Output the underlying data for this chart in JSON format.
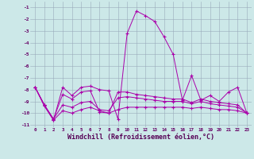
{
  "x": [
    0,
    1,
    2,
    3,
    4,
    5,
    6,
    7,
    8,
    9,
    10,
    11,
    12,
    13,
    14,
    15,
    16,
    17,
    18,
    19,
    20,
    21,
    22,
    23
  ],
  "line1": [
    -7.8,
    -9.3,
    -10.6,
    -7.8,
    -8.5,
    -7.8,
    -7.7,
    -8.0,
    -8.1,
    -10.5,
    -3.2,
    -1.3,
    -1.7,
    -2.2,
    -3.5,
    -5.0,
    -8.9,
    -6.8,
    -8.9,
    -8.5,
    -9.0,
    -8.2,
    -7.8,
    -10.0
  ],
  "line2": [
    -7.8,
    -9.3,
    -10.5,
    -8.4,
    -8.8,
    -8.2,
    -8.1,
    -9.9,
    -10.0,
    -8.2,
    -8.2,
    -8.4,
    -8.5,
    -8.6,
    -8.7,
    -8.8,
    -8.8,
    -9.1,
    -8.8,
    -9.0,
    -9.1,
    -9.2,
    -9.3,
    -10.0
  ],
  "line3": [
    -7.8,
    -9.4,
    -10.6,
    -9.8,
    -10.0,
    -9.7,
    -9.5,
    -9.8,
    -10.0,
    -9.7,
    -9.5,
    -9.5,
    -9.5,
    -9.5,
    -9.5,
    -9.5,
    -9.5,
    -9.6,
    -9.5,
    -9.6,
    -9.7,
    -9.7,
    -9.8,
    -10.0
  ],
  "line4": [
    -7.8,
    -9.3,
    -10.5,
    -9.3,
    -9.5,
    -9.1,
    -9.0,
    -9.7,
    -9.8,
    -8.7,
    -8.6,
    -8.7,
    -8.8,
    -8.9,
    -9.0,
    -9.0,
    -9.0,
    -9.2,
    -9.0,
    -9.2,
    -9.3,
    -9.4,
    -9.5,
    -10.0
  ],
  "bg_color": "#cce8e8",
  "line_color": "#aa00aa",
  "grid_color": "#99aabb",
  "xlabel": "Windchill (Refroidissement éolien,°C)",
  "ylim": [
    -11.2,
    -0.5
  ],
  "xlim": [
    -0.5,
    23.5
  ],
  "yticks": [
    -11,
    -10,
    -9,
    -8,
    -7,
    -6,
    -5,
    -4,
    -3,
    -2,
    -1
  ],
  "xtick_labels": [
    "0",
    "1",
    "2",
    "3",
    "4",
    "5",
    "6",
    "7",
    "8",
    "9",
    "10",
    "11",
    "12",
    "13",
    "14",
    "15",
    "16",
    "17",
    "18",
    "19",
    "20",
    "21",
    "22",
    "23"
  ]
}
